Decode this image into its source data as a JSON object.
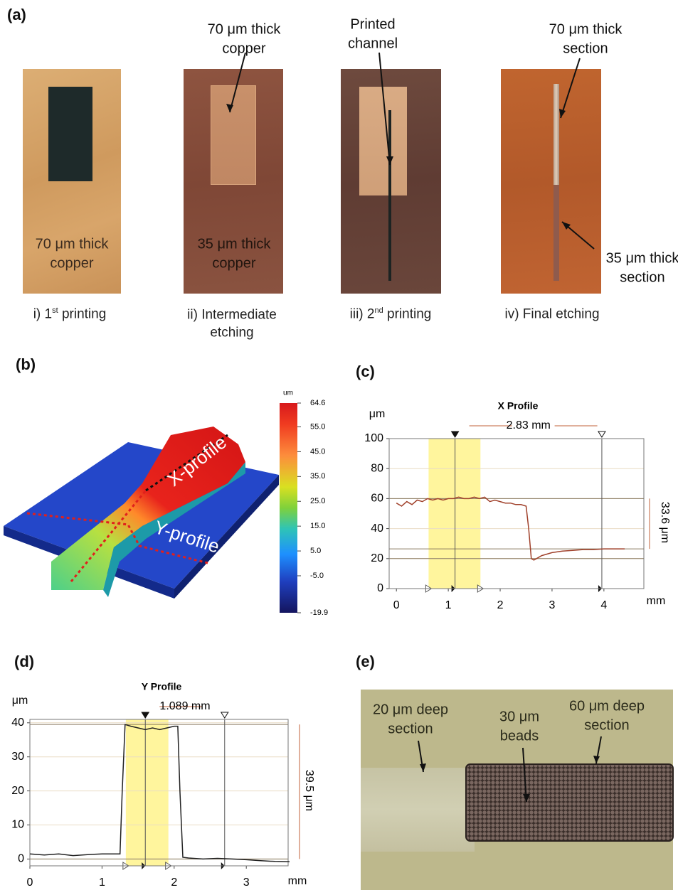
{
  "figure": {
    "panel_labels": [
      "(a)",
      "(b)",
      "(c)",
      "(d)",
      "(e)"
    ]
  },
  "panel_a": {
    "photos": [
      {
        "caption": [
          "i) 1",
          "st",
          " printing"
        ],
        "labels": [
          "70 μm thick\ncopper"
        ]
      },
      {
        "caption": [
          "ii) Intermediate\netching"
        ],
        "labels": [
          "35 μm thick\ncopper",
          "70 μm thick\ncopper"
        ]
      },
      {
        "caption": [
          "iii) 2",
          "nd",
          " printing"
        ],
        "labels": [
          "Printed\nchannel"
        ]
      },
      {
        "caption": [
          "iv) Final etching"
        ],
        "labels": [
          "70 μm thick\nsection",
          "35 μm thick\nsection"
        ]
      }
    ]
  },
  "panel_e": {
    "labels": [
      "20 μm deep\nsection",
      "30 μm\nbeads",
      "60 μm deep\nsection"
    ]
  },
  "chart_data": [
    {
      "type": "surface3d",
      "colorbar_label": "um",
      "clim": [
        -19.9,
        64.6
      ],
      "cticks": [
        64.6,
        {
          "value": 55,
          "label": "55.0"
        },
        {
          "value": 45,
          "label": "45.0"
        },
        {
          "value": 35,
          "label": "35.0"
        },
        {
          "value": 25,
          "label": "25.0"
        },
        {
          "value": 15,
          "label": "15.0"
        },
        {
          "value": 5,
          "label": "5.0"
        },
        {
          "value": -5,
          "label": "-5.0"
        },
        -19.9
      ],
      "labels": [
        "X-profile",
        "Y-profile"
      ]
    },
    {
      "type": "line",
      "title": "X Profile",
      "ylabel": "μm",
      "xlabel": "mm",
      "span_label": "2.83 mm",
      "height_label": "33.6 μm",
      "xlim": [
        -0.14,
        4.77
      ],
      "xticks": [
        0,
        1,
        2,
        3,
        4
      ],
      "ylim": [
        0,
        100
      ],
      "yticks": [
        0,
        20,
        40,
        60,
        80,
        100
      ],
      "band": [
        0.62,
        1.62
      ],
      "cursors": [
        1.13,
        3.96
      ],
      "hlines": [
        60,
        26.5,
        20
      ],
      "color": "#a0402a",
      "x": [
        0,
        0.1,
        0.2,
        0.3,
        0.4,
        0.5,
        0.6,
        0.7,
        0.8,
        0.9,
        1.0,
        1.1,
        1.2,
        1.3,
        1.4,
        1.5,
        1.6,
        1.7,
        1.8,
        1.9,
        2.0,
        2.1,
        2.2,
        2.3,
        2.4,
        2.5,
        2.55,
        2.6,
        2.65,
        2.7,
        2.8,
        2.9,
        3.0,
        3.2,
        3.4,
        3.6,
        3.8,
        4.0,
        4.2,
        4.4
      ],
      "values": [
        57,
        55,
        58,
        56,
        59,
        58,
        60,
        59,
        60,
        59,
        60,
        60,
        61,
        60,
        60,
        61,
        60,
        61,
        58,
        59,
        58,
        57,
        57,
        56,
        56,
        55,
        40,
        20,
        19,
        20,
        22,
        23,
        24,
        25,
        25.5,
        26,
        26,
        26.5,
        26.5,
        26.5
      ]
    },
    {
      "type": "line",
      "title": "Y Profile",
      "ylabel": "μm",
      "xlabel": "mm",
      "span_label": "1.089 mm",
      "height_label": "39.5 μm",
      "xlim": [
        0,
        3.58
      ],
      "xticks": [
        0,
        1,
        2,
        3
      ],
      "ylim": [
        -2,
        41
      ],
      "yticks": [
        0,
        10,
        20,
        30,
        40
      ],
      "band": [
        1.33,
        1.92
      ],
      "cursors": [
        1.6,
        2.7
      ],
      "hlines": [
        39.5,
        0
      ],
      "color": "#222222",
      "x": [
        0,
        0.2,
        0.4,
        0.6,
        0.8,
        1.0,
        1.2,
        1.25,
        1.28,
        1.32,
        1.4,
        1.5,
        1.6,
        1.7,
        1.8,
        1.9,
        2.0,
        2.05,
        2.08,
        2.12,
        2.2,
        2.4,
        2.6,
        2.8,
        3.0,
        3.2,
        3.4,
        3.6
      ],
      "values": [
        1.5,
        1.2,
        1.5,
        1.0,
        1.3,
        1.5,
        1.5,
        1.5,
        20,
        39.5,
        39,
        38.5,
        38,
        38.5,
        38,
        38.5,
        39,
        39,
        20,
        0.5,
        0.3,
        0,
        0.2,
        0,
        -0.2,
        -0.5,
        -0.7,
        -0.8
      ]
    }
  ]
}
